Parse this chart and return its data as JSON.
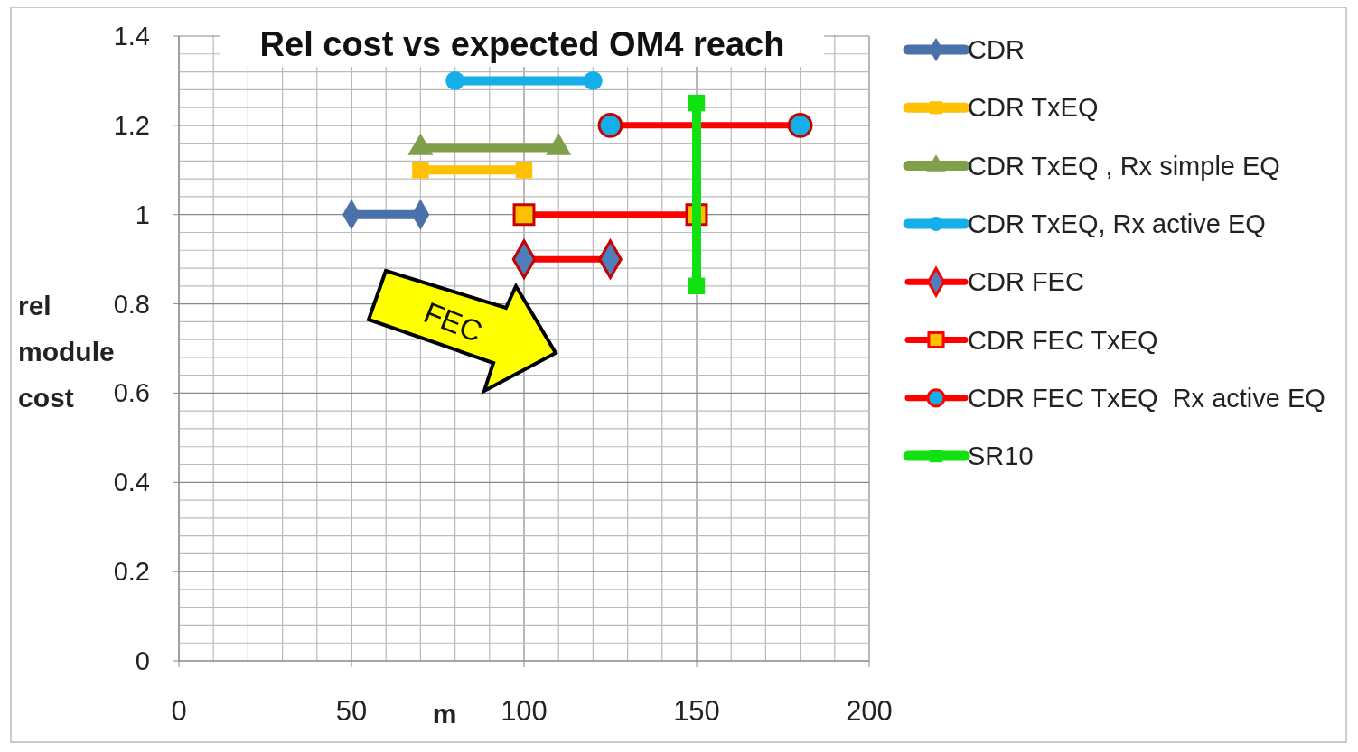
{
  "chart_data": {
    "type": "line",
    "title": "Rel cost vs expected OM4 reach",
    "xlabel": "m",
    "ylabel": "rel module cost",
    "xlim": [
      0,
      200
    ],
    "xticks": [
      0,
      50,
      100,
      150,
      200
    ],
    "ylim": [
      0,
      1.4
    ],
    "yticks": [
      0,
      0.2,
      0.4,
      0.6,
      0.8,
      1,
      1.2,
      1.4
    ],
    "grid": true,
    "legend": "right",
    "annotations": [
      "FEC"
    ],
    "series": [
      {
        "name": "CDR",
        "color": "#4a72a8",
        "marker": "diamond",
        "x": [
          50,
          70
        ],
        "values": [
          1,
          1
        ]
      },
      {
        "name": "CDR TxEQ",
        "color": "#ffc000",
        "marker": "square",
        "x": [
          70,
          100
        ],
        "values": [
          1.1,
          1.1
        ]
      },
      {
        "name": "CDR TxEQ , Rx simple EQ",
        "color": "#7f9f4a",
        "marker": "triangle",
        "x": [
          70,
          110
        ],
        "values": [
          1.15,
          1.15
        ]
      },
      {
        "name": "CDR TxEQ, Rx active EQ",
        "color": "#14aee8",
        "marker": "circle",
        "x": [
          80,
          120
        ],
        "values": [
          1.3,
          1.3
        ]
      },
      {
        "name": "CDR FEC",
        "color": "#ff0000",
        "marker": "diamond",
        "colors": [
          "#4f7fba",
          "#4f7fba"
        ],
        "x": [
          100,
          125
        ],
        "values": [
          0.9,
          0.9
        ]
      },
      {
        "name": "CDR FEC TxEQ",
        "color": "#ff0000",
        "marker": "square",
        "colors": [
          "#ffc000",
          "#ffc000"
        ],
        "x": [
          100,
          150
        ],
        "values": [
          1,
          1
        ]
      },
      {
        "name": "CDR FEC TxEQ  Rx active EQ",
        "color": "#ff0000",
        "marker": "circle",
        "colors": [
          "#14aee8",
          "#14aee8"
        ],
        "x": [
          125,
          180
        ],
        "values": [
          1.2,
          1.2
        ]
      },
      {
        "name": "SR10",
        "color": "#11e011",
        "marker": "square",
        "x": [
          150,
          150
        ],
        "values": [
          1.25,
          0.84
        ]
      }
    ]
  }
}
